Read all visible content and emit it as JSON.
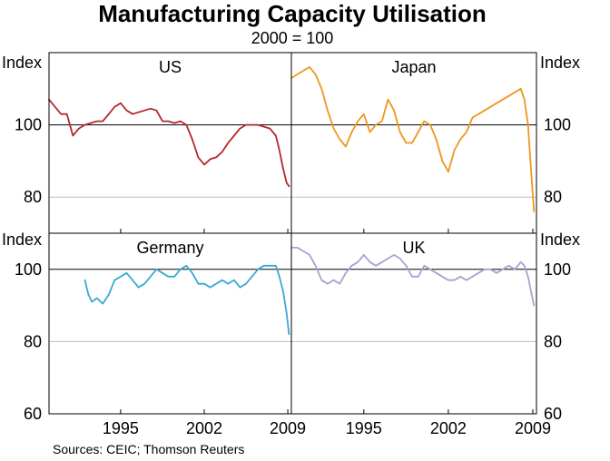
{
  "header": {
    "title": "Manufacturing Capacity Utilisation",
    "subtitle": "2000 = 100"
  },
  "source": "Sources: CEIC; Thomson Reuters",
  "axes": {
    "unit_label": "Index",
    "top_ylim": [
      70,
      120
    ],
    "bottom_ylim": [
      60,
      110
    ],
    "top_ticks": [
      80,
      100
    ],
    "bottom_ticks": [
      60,
      80,
      100
    ],
    "left_xlim": [
      1989.0,
      2009.3
    ],
    "right_xlim": [
      1989.0,
      2009.3
    ],
    "x_ticks": [
      {
        "value": 1995,
        "label": "1995"
      },
      {
        "value": 2002,
        "label": "2002"
      },
      {
        "value": 2009,
        "label": "2009"
      }
    ],
    "grid": true,
    "reference_line": 100
  },
  "chart_data": [
    {
      "type": "line",
      "name": "US",
      "color": "#b5282c",
      "x": [
        1989.0,
        1989.5,
        1990.0,
        1990.5,
        1991.0,
        1991.5,
        1992.0,
        1992.5,
        1993.0,
        1993.5,
        1994.0,
        1994.5,
        1995.0,
        1995.5,
        1996.0,
        1996.5,
        1997.0,
        1997.5,
        1998.0,
        1998.5,
        1999.0,
        1999.5,
        2000.0,
        2000.5,
        2001.0,
        2001.5,
        2002.0,
        2002.5,
        2003.0,
        2003.5,
        2004.0,
        2004.5,
        2005.0,
        2005.5,
        2006.0,
        2006.5,
        2007.0,
        2007.5,
        2008.0,
        2008.3,
        2008.6,
        2008.9,
        2009.1
      ],
      "values": [
        107,
        105,
        103,
        103,
        97,
        99,
        100,
        100.5,
        101,
        101,
        103,
        105,
        106,
        104,
        103,
        103.5,
        104,
        104.5,
        104,
        101,
        101,
        100.5,
        101,
        100,
        96,
        91,
        89,
        90.5,
        91,
        92.5,
        95,
        97,
        99,
        100,
        100,
        100,
        99.5,
        99,
        97,
        93,
        88,
        84,
        83
      ]
    },
    {
      "type": "line",
      "name": "Japan",
      "color": "#f0961e",
      "x": [
        1989.0,
        1989.5,
        1990.0,
        1990.5,
        1991.0,
        1991.5,
        1992.0,
        1992.5,
        1993.0,
        1993.5,
        1994.0,
        1994.5,
        1995.0,
        1995.5,
        1996.0,
        1996.5,
        1997.0,
        1997.5,
        1998.0,
        1998.5,
        1999.0,
        1999.5,
        2000.0,
        2000.5,
        2001.0,
        2001.5,
        2002.0,
        2002.5,
        2003.0,
        2003.5,
        2004.0,
        2004.5,
        2005.0,
        2005.5,
        2006.0,
        2006.5,
        2007.0,
        2007.5,
        2008.0,
        2008.3,
        2008.6,
        2008.9,
        2009.1
      ],
      "values": [
        113,
        114,
        115,
        116,
        114,
        110,
        104,
        99,
        96,
        94,
        98,
        101,
        103,
        98,
        100,
        101,
        107,
        104,
        98,
        95,
        95,
        98,
        101,
        100,
        96,
        90,
        87,
        93,
        96,
        98,
        102,
        103,
        104,
        105,
        106,
        107,
        108,
        109,
        110,
        107,
        100,
        85,
        76
      ]
    },
    {
      "type": "line",
      "name": "Germany",
      "color": "#3aa9d4",
      "x": [
        1992.0,
        1992.3,
        1992.6,
        1993.0,
        1993.5,
        1994.0,
        1994.5,
        1995.0,
        1995.5,
        1996.0,
        1996.5,
        1997.0,
        1997.5,
        1998.0,
        1998.5,
        1999.0,
        1999.5,
        2000.0,
        2000.5,
        2001.0,
        2001.5,
        2002.0,
        2002.5,
        2003.0,
        2003.5,
        2004.0,
        2004.5,
        2005.0,
        2005.5,
        2006.0,
        2006.5,
        2007.0,
        2007.5,
        2008.0,
        2008.3,
        2008.6,
        2008.9,
        2009.1
      ],
      "values": [
        97,
        93,
        91,
        92,
        90.5,
        93,
        97,
        98,
        99,
        97,
        95,
        96,
        98,
        100,
        99,
        98,
        98,
        100,
        101,
        99,
        96,
        96,
        95,
        96,
        97,
        96,
        97,
        95,
        96,
        98,
        100,
        101,
        101,
        101,
        98,
        94,
        88,
        82
      ]
    },
    {
      "type": "line",
      "name": "UK",
      "color": "#a3a3d1",
      "x": [
        1989.0,
        1989.5,
        1990.0,
        1990.5,
        1991.0,
        1991.5,
        1992.0,
        1992.5,
        1993.0,
        1993.5,
        1994.0,
        1994.5,
        1995.0,
        1995.5,
        1996.0,
        1996.5,
        1997.0,
        1997.5,
        1998.0,
        1998.5,
        1999.0,
        1999.5,
        2000.0,
        2000.5,
        2001.0,
        2001.5,
        2002.0,
        2002.5,
        2003.0,
        2003.5,
        2004.0,
        2004.5,
        2005.0,
        2005.5,
        2006.0,
        2006.5,
        2007.0,
        2007.5,
        2008.0,
        2008.3,
        2008.6,
        2008.9,
        2009.1
      ],
      "values": [
        106,
        106,
        105,
        104,
        101,
        97,
        96,
        97,
        96,
        99,
        101,
        102,
        104,
        102,
        101,
        102,
        103,
        104,
        103,
        101,
        98,
        98,
        101,
        100,
        99,
        98,
        97,
        97,
        98,
        97,
        98,
        99,
        100,
        100,
        99,
        100,
        101,
        100,
        102,
        101,
        98,
        93,
        90
      ]
    }
  ]
}
